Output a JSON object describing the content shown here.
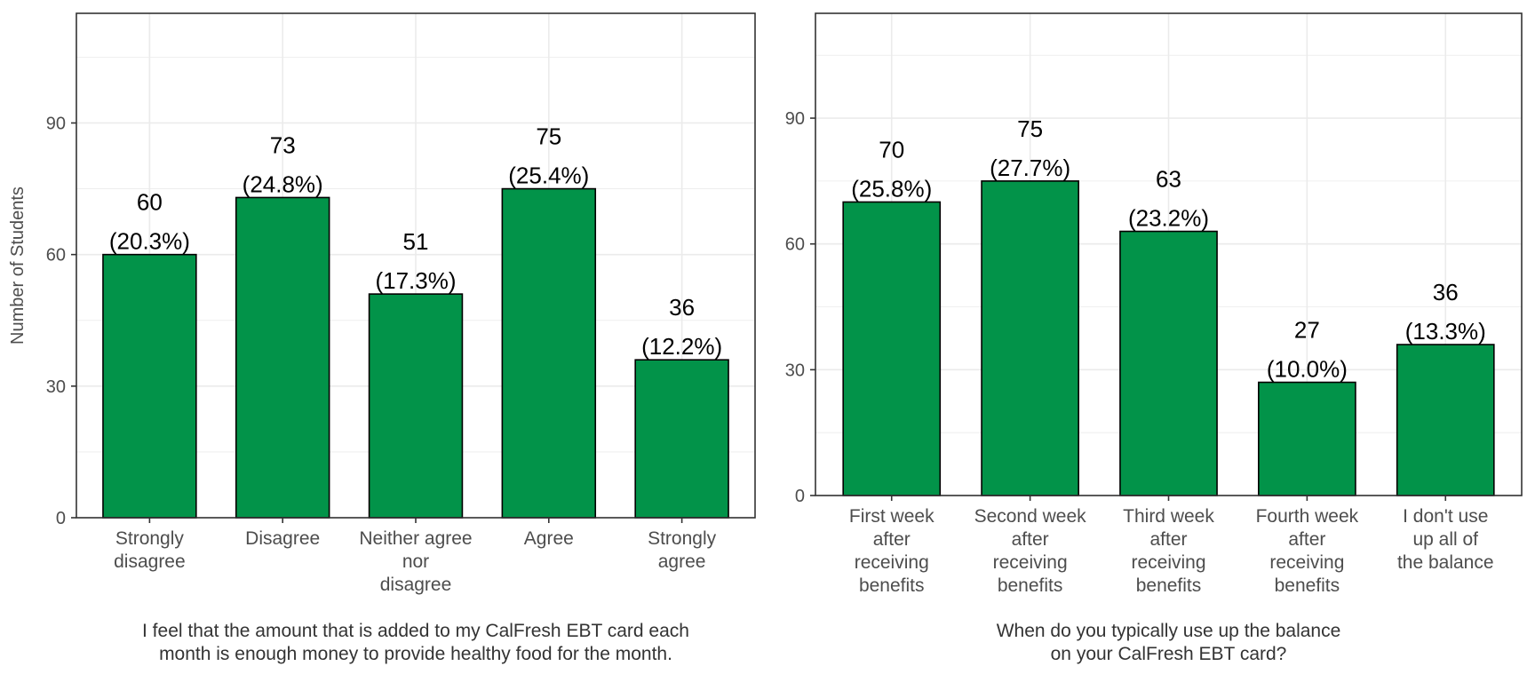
{
  "colors": {
    "bar": "#029349",
    "bar_outline": "#000000",
    "grid": "#ebebeb",
    "panel_border": "#333333"
  },
  "chart_data": [
    {
      "type": "bar",
      "categories": [
        [
          "Strongly",
          "disagree"
        ],
        [
          "Disagree"
        ],
        [
          "Neither agree",
          "nor",
          "disagree"
        ],
        [
          "Agree"
        ],
        [
          "Strongly",
          "agree"
        ]
      ],
      "values": [
        60,
        73,
        51,
        75,
        36
      ],
      "percent_labels": [
        "(20.3%)",
        "(24.8%)",
        "(17.3%)",
        "(25.4%)",
        "(12.2%)"
      ],
      "xlabel": [
        "I feel that the amount that is added to my CalFresh EBT card each",
        "month is enough money to provide healthy food for the month."
      ],
      "ylabel": "Number of Students",
      "ylim": [
        0,
        115
      ],
      "yticks": [
        0,
        30,
        60,
        90
      ],
      "grid": true
    },
    {
      "type": "bar",
      "categories": [
        [
          "First week",
          "after",
          "receiving",
          "benefits"
        ],
        [
          "Second week",
          "after",
          "receiving",
          "benefits"
        ],
        [
          "Third week",
          "after",
          "receiving",
          "benefits"
        ],
        [
          "Fourth week",
          "after",
          "receiving",
          "benefits"
        ],
        [
          "I don't use",
          "up all of",
          "the balance"
        ]
      ],
      "values": [
        70,
        75,
        63,
        27,
        36
      ],
      "percent_labels": [
        "(25.8%)",
        "(27.7%)",
        "(23.2%)",
        "(10.0%)",
        "(13.3%)"
      ],
      "xlabel": [
        "When do you typically use up the balance",
        "on your CalFresh EBT card?"
      ],
      "ylabel": "",
      "ylim": [
        0,
        115
      ],
      "yticks": [
        0,
        30,
        60,
        90
      ],
      "grid": true
    }
  ]
}
